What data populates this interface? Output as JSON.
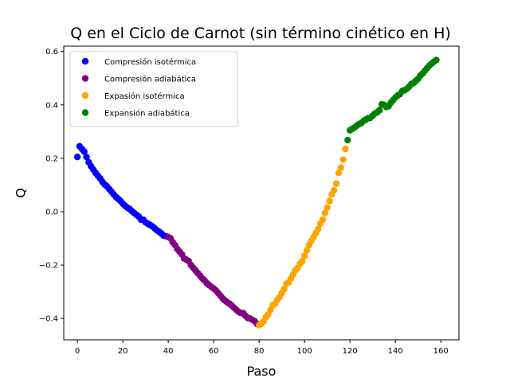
{
  "chart_data": {
    "type": "scatter",
    "title": "Q en el Ciclo de Carnot (sin término cinético en H)",
    "xlabel": "Paso",
    "ylabel": "Q",
    "xlim": [
      -6,
      168
    ],
    "ylim": [
      -0.48,
      0.62
    ],
    "xticks": [
      0,
      20,
      40,
      60,
      80,
      100,
      120,
      140,
      160
    ],
    "yticks": [
      -0.4,
      -0.2,
      0.0,
      0.2,
      0.4,
      0.6
    ],
    "xtick_labels": [
      "0",
      "20",
      "40",
      "60",
      "80",
      "100",
      "120",
      "140",
      "160"
    ],
    "ytick_labels": [
      "−0.4",
      "−0.2",
      "0.0",
      "0.2",
      "0.4",
      "0.6"
    ],
    "grid": false,
    "legend_position": "top-left",
    "series": [
      {
        "name": "Compresión isotérmica",
        "color": "#0000ff",
        "x": [
          0,
          1,
          2,
          3,
          4,
          5,
          6,
          7,
          8,
          9,
          10,
          11,
          12,
          13,
          14,
          15,
          16,
          17,
          18,
          19,
          20,
          21,
          22,
          23,
          24,
          25,
          26,
          27,
          28,
          29,
          30,
          31,
          32,
          33,
          34,
          35,
          36,
          37,
          38,
          39
        ],
        "y": [
          0.205,
          0.245,
          0.235,
          0.225,
          0.205,
          0.185,
          0.17,
          0.158,
          0.145,
          0.135,
          0.125,
          0.112,
          0.102,
          0.095,
          0.085,
          0.075,
          0.065,
          0.055,
          0.048,
          0.04,
          0.03,
          0.022,
          0.015,
          0.01,
          0.002,
          -0.005,
          -0.012,
          -0.018,
          -0.03,
          -0.03,
          -0.04,
          -0.045,
          -0.05,
          -0.055,
          -0.062,
          -0.07,
          -0.075,
          -0.082,
          -0.09,
          -0.092
        ]
      },
      {
        "name": "Compresión adiabática",
        "color": "#800080",
        "x": [
          40,
          41,
          42,
          43,
          44,
          45,
          46,
          47,
          48,
          49,
          50,
          51,
          52,
          53,
          54,
          55,
          56,
          57,
          58,
          59,
          60,
          61,
          62,
          63,
          64,
          65,
          66,
          67,
          68,
          69,
          70,
          71,
          72,
          73,
          74,
          75,
          76,
          77,
          78,
          79
        ],
        "y": [
          -0.095,
          -0.1,
          -0.115,
          -0.125,
          -0.14,
          -0.15,
          -0.16,
          -0.175,
          -0.18,
          -0.185,
          -0.2,
          -0.21,
          -0.22,
          -0.23,
          -0.24,
          -0.25,
          -0.258,
          -0.268,
          -0.275,
          -0.282,
          -0.288,
          -0.295,
          -0.305,
          -0.315,
          -0.325,
          -0.333,
          -0.34,
          -0.345,
          -0.352,
          -0.36,
          -0.368,
          -0.375,
          -0.38,
          -0.38,
          -0.39,
          -0.398,
          -0.4,
          -0.405,
          -0.41,
          -0.42
        ]
      },
      {
        "name": "Expasión isotérmica",
        "color": "#ffa500",
        "x": [
          80,
          81,
          82,
          83,
          84,
          85,
          86,
          87,
          88,
          89,
          90,
          91,
          92,
          93,
          94,
          95,
          96,
          97,
          98,
          99,
          100,
          101,
          102,
          103,
          104,
          105,
          106,
          107,
          108,
          109,
          110,
          111,
          112,
          113,
          114,
          115,
          116,
          117,
          118
        ],
        "y": [
          -0.425,
          -0.42,
          -0.41,
          -0.395,
          -0.385,
          -0.368,
          -0.35,
          -0.345,
          -0.33,
          -0.32,
          -0.305,
          -0.29,
          -0.27,
          -0.265,
          -0.25,
          -0.235,
          -0.22,
          -0.21,
          -0.195,
          -0.185,
          -0.165,
          -0.145,
          -0.125,
          -0.11,
          -0.095,
          -0.08,
          -0.065,
          -0.045,
          -0.03,
          -0.005,
          0.015,
          0.04,
          0.065,
          0.08,
          0.105,
          0.145,
          0.165,
          0.195,
          0.235
        ]
      },
      {
        "name": "Expansión adiabática",
        "color": "#008000",
        "x": [
          119,
          120,
          121,
          122,
          123,
          124,
          125,
          126,
          127,
          128,
          129,
          130,
          131,
          132,
          133,
          134,
          135,
          136,
          137,
          138,
          139,
          140,
          141,
          142,
          143,
          144,
          145,
          146,
          147,
          148,
          149,
          150,
          151,
          152,
          153,
          154,
          155,
          156,
          157,
          158
        ],
        "y": [
          0.268,
          0.305,
          0.31,
          0.315,
          0.322,
          0.328,
          0.332,
          0.34,
          0.345,
          0.35,
          0.352,
          0.36,
          0.368,
          0.372,
          0.38,
          0.402,
          0.4,
          0.392,
          0.395,
          0.408,
          0.418,
          0.428,
          0.435,
          0.44,
          0.452,
          0.455,
          0.46,
          0.468,
          0.478,
          0.482,
          0.49,
          0.498,
          0.51,
          0.518,
          0.528,
          0.538,
          0.548,
          0.555,
          0.562,
          0.568
        ]
      }
    ]
  }
}
